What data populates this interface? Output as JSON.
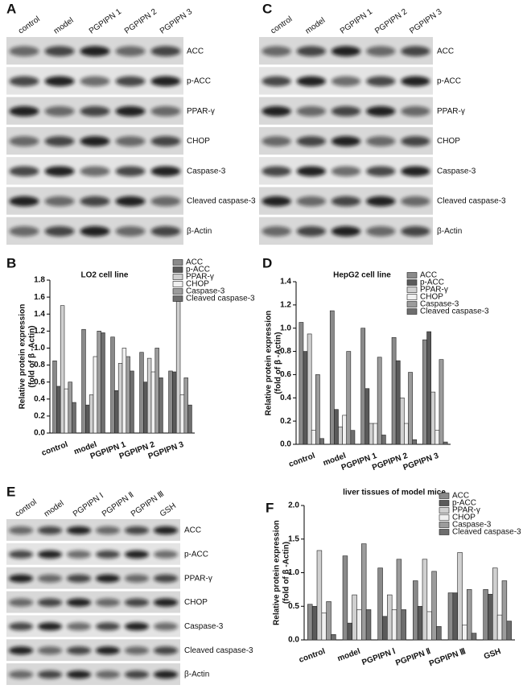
{
  "blots": [
    {
      "panel": "A",
      "lanes": [
        "control",
        "model",
        "PGPIPN 1",
        "PGPIPN 2",
        "PGPIPN 3"
      ],
      "proteins": [
        "ACC",
        "p-ACC",
        "PPAR-γ",
        "CHOP",
        "Caspase-3",
        "Cleaved caspase-3",
        "β-Actin"
      ]
    },
    {
      "panel": "C",
      "lanes": [
        "control",
        "model",
        "PGPIPN 1",
        "PGPIPN 2",
        "PGPIPN 3"
      ],
      "proteins": [
        "ACC",
        "p-ACC",
        "PPAR-γ",
        "CHOP",
        "Caspase-3",
        "Cleaved caspase-3",
        "β-Actin"
      ]
    },
    {
      "panel": "E",
      "lanes": [
        "control",
        "model",
        "PGPIPN Ⅰ",
        "PGPIPN Ⅱ",
        "PGPIPN Ⅲ",
        "GSH"
      ],
      "proteins": [
        "ACC",
        "p-ACC",
        "PPAR-γ",
        "CHOP",
        "Caspase-3",
        "Cleaved caspase-3",
        "β-Actin"
      ]
    }
  ],
  "chart_data": [
    {
      "type": "bar",
      "panel": "B",
      "title": "LO2 cell line",
      "y_label": [
        "Relative protein expression",
        "(fold of β -Actin)"
      ],
      "categories": [
        "control",
        "model",
        "PGPIPN 1",
        "PGPIPN 2",
        "PGPIPN 3"
      ],
      "series": [
        {
          "name": "ACC",
          "color": "#8a8a8a",
          "values": [
            0.85,
            1.22,
            1.13,
            0.95,
            0.73
          ]
        },
        {
          "name": "p-ACC",
          "color": "#5a5a5a",
          "values": [
            0.55,
            0.33,
            0.5,
            0.6,
            0.72
          ]
        },
        {
          "name": "PPAR-γ",
          "color": "#d0d0d0",
          "values": [
            1.5,
            0.45,
            0.82,
            0.88,
            1.55
          ]
        },
        {
          "name": "CHOP",
          "color": "#f0f0f0",
          "values": [
            0.52,
            0.9,
            1.0,
            0.72,
            0.45
          ]
        },
        {
          "name": "Caspase-3",
          "color": "#9c9c9c",
          "values": [
            0.6,
            1.2,
            0.9,
            1.0,
            0.65
          ]
        },
        {
          "name": "Cleaved caspase-3",
          "color": "#6e6e6e",
          "values": [
            0.36,
            1.18,
            0.73,
            0.65,
            0.33
          ]
        }
      ],
      "ylim": [
        0,
        1.8
      ],
      "yticks": [
        {
          "value": 0,
          "label": "0.0"
        },
        0.2,
        0.4,
        0.6,
        0.8,
        {
          "value": 1,
          "label": "1.0"
        },
        1.2,
        1.4,
        1.6,
        1.8
      ]
    },
    {
      "type": "bar",
      "panel": "D",
      "title": "HepG2 cell line",
      "y_label": [
        "Relative protein expression",
        "(fold of β -Actin)"
      ],
      "categories": [
        "control",
        "model",
        "PGPIPN 1",
        "PGPIPN 2",
        "PGPIPN 3"
      ],
      "series": [
        {
          "name": "ACC",
          "color": "#8a8a8a",
          "values": [
            1.05,
            1.15,
            1.0,
            0.92,
            0.9
          ]
        },
        {
          "name": "p-ACC",
          "color": "#5a5a5a",
          "values": [
            0.8,
            0.3,
            0.48,
            0.72,
            0.97
          ]
        },
        {
          "name": "PPAR-γ",
          "color": "#d0d0d0",
          "values": [
            0.95,
            0.15,
            0.18,
            0.4,
            0.45
          ]
        },
        {
          "name": "CHOP",
          "color": "#f0f0f0",
          "values": [
            0.12,
            0.25,
            0.18,
            0.18,
            0.12
          ]
        },
        {
          "name": "Caspase-3",
          "color": "#9c9c9c",
          "values": [
            0.6,
            0.8,
            0.75,
            0.62,
            0.73
          ]
        },
        {
          "name": "Cleaved caspase-3",
          "color": "#6e6e6e",
          "values": [
            0.05,
            0.12,
            0.08,
            0.04,
            0.02
          ]
        }
      ],
      "ylim": [
        0,
        1.4
      ],
      "yticks": [
        {
          "value": 0,
          "label": "0.0"
        },
        0.2,
        0.4,
        0.6,
        0.8,
        {
          "value": 1,
          "label": "1.0"
        },
        1.2,
        1.4
      ]
    },
    {
      "type": "bar",
      "panel": "F",
      "title": "liver tissues of model mice",
      "y_label": [
        "Relative protein expression",
        "(fold of β -Actin)"
      ],
      "categories": [
        "control",
        "model",
        "PGPIPN Ⅰ",
        "PGPIPN Ⅱ",
        "PGPIPN Ⅲ",
        "GSH"
      ],
      "series": [
        {
          "name": "ACC",
          "color": "#8a8a8a",
          "values": [
            0.53,
            1.25,
            1.07,
            0.88,
            0.7,
            0.75
          ]
        },
        {
          "name": "p-ACC",
          "color": "#5a5a5a",
          "values": [
            0.5,
            0.25,
            0.35,
            0.5,
            0.7,
            0.68
          ]
        },
        {
          "name": "PPAR-γ",
          "color": "#d0d0d0",
          "values": [
            1.33,
            0.67,
            0.67,
            1.2,
            1.3,
            1.07
          ]
        },
        {
          "name": "CHOP",
          "color": "#f0f0f0",
          "values": [
            0.4,
            0.45,
            0.45,
            0.42,
            0.22,
            0.37
          ]
        },
        {
          "name": "Caspase-3",
          "color": "#9c9c9c",
          "values": [
            0.57,
            1.43,
            1.2,
            1.02,
            0.75,
            0.88
          ]
        },
        {
          "name": "Cleaved caspase-3",
          "color": "#6e6e6e",
          "values": [
            0.08,
            0.45,
            0.45,
            0.2,
            0.1,
            0.28
          ]
        }
      ],
      "ylim": [
        0,
        2
      ],
      "yticks": [
        {
          "value": 0,
          "label": "0.0"
        },
        0.5,
        {
          "value": 1,
          "label": "1.0"
        },
        1.5,
        {
          "value": 2,
          "label": "2.0"
        }
      ]
    }
  ]
}
